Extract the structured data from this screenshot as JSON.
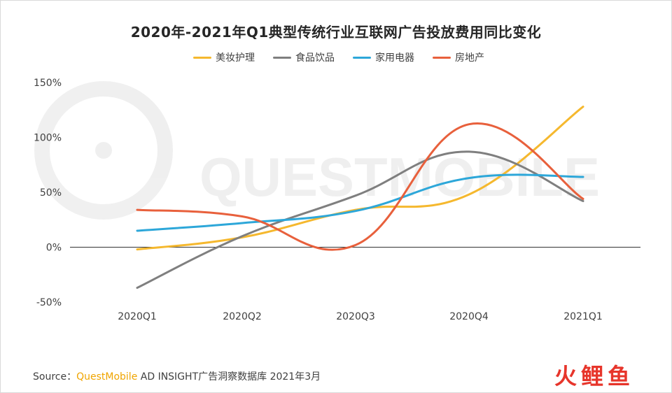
{
  "chart_data": {
    "type": "line",
    "title": "2020年-2021年Q1典型传统行业互联网广告投放费用同比变化",
    "categories": [
      "2020Q1",
      "2020Q2",
      "2020Q3",
      "2020Q4",
      "2021Q1"
    ],
    "ylim": [
      -50,
      150
    ],
    "yticks": [
      "150%",
      "100%",
      "50%",
      "0%",
      "-50%"
    ],
    "ytick_values": [
      150,
      100,
      50,
      0,
      -50
    ],
    "grid": false,
    "legend_position": "top-center",
    "series": [
      {
        "name": "美妆护理",
        "color": "#f5b82e",
        "values": [
          -2,
          9,
          34,
          48,
          128
        ]
      },
      {
        "name": "食品饮品",
        "color": "#7f7f7f",
        "values": [
          -37,
          10,
          47,
          87,
          42
        ]
      },
      {
        "name": "家用电器",
        "color": "#2da7d9",
        "values": [
          15,
          22,
          33,
          63,
          64
        ]
      },
      {
        "name": "房地产",
        "color": "#e8603c",
        "values": [
          34,
          28,
          2,
          112,
          44
        ]
      }
    ]
  },
  "watermark": "QUESTMOBILE",
  "footer": {
    "source_label": "Source：",
    "source_brand": "QuestMobile",
    "source_text": " AD INSIGHT广告洞察数据库 2021年3月",
    "logo_text": "火鲤鱼"
  }
}
